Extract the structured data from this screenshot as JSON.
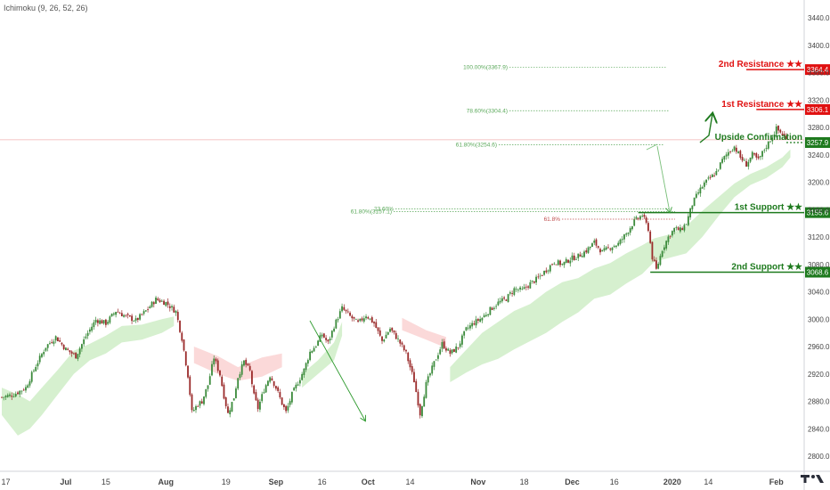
{
  "indicator": "Ichimoku (9, 26, 52, 26)",
  "colors": {
    "bull_candle": "#3a8a3a",
    "bear_candle": "#9a2a2a",
    "cloud_bull": "#d6f0cf",
    "cloud_bear": "#fbd9d9",
    "resistance": "#e01010",
    "support": "#1e7a1e",
    "fib": "#5aa85a",
    "fib_red": "#c05050",
    "arrow": "#2e9a2e",
    "current_price_line": "#f2b0b0"
  },
  "chart_data": {
    "type": "candlestick",
    "x_tick_labels": [
      "17",
      "Jul",
      "15",
      "Aug",
      "19",
      "Sep",
      "16",
      "Oct",
      "14",
      "Nov",
      "18",
      "Dec",
      "16",
      "2020",
      "14",
      "Feb"
    ],
    "x_tick_bold": [
      "Jul",
      "Aug",
      "Sep",
      "Oct",
      "Nov",
      "Dec",
      "2020",
      "Feb"
    ],
    "y_tick_labels": [
      "3440.0",
      "3400.0",
      "3360.0",
      "3320.0",
      "3280.0",
      "3240.0",
      "3200.0",
      "3160.0",
      "3120.0",
      "3080.0",
      "3040.0",
      "3000.0",
      "2960.0",
      "2920.0",
      "2880.0",
      "2840.0",
      "2800.0"
    ],
    "y_ticks": [
      3440,
      3400,
      3360,
      3320,
      3280,
      3240,
      3200,
      3160,
      3120,
      3080,
      3040,
      3000,
      2960,
      2920,
      2880,
      2840,
      2800
    ],
    "ylim": [
      2780,
      3460
    ],
    "close_path": [
      [
        0,
        2886
      ],
      [
        6,
        2890
      ],
      [
        12,
        2900
      ],
      [
        17,
        2932
      ],
      [
        22,
        2960
      ],
      [
        27,
        2974
      ],
      [
        32,
        2956
      ],
      [
        37,
        2946
      ],
      [
        42,
        2975
      ],
      [
        47,
        2999
      ],
      [
        52,
        2994
      ],
      [
        57,
        3012
      ],
      [
        62,
        3004
      ],
      [
        67,
        2998
      ],
      [
        72,
        3012
      ],
      [
        77,
        3029
      ],
      [
        82,
        3024
      ],
      [
        87,
        3011
      ],
      [
        90,
        2972
      ],
      [
        93,
        2918
      ],
      [
        95,
        2864
      ],
      [
        98,
        2876
      ],
      [
        100,
        2880
      ],
      [
        103,
        2904
      ],
      [
        106,
        2944
      ],
      [
        109,
        2919
      ],
      [
        111,
        2888
      ],
      [
        113,
        2862
      ],
      [
        116,
        2886
      ],
      [
        118,
        2916
      ],
      [
        121,
        2938
      ],
      [
        124,
        2924
      ],
      [
        126,
        2888
      ],
      [
        128,
        2870
      ],
      [
        131,
        2897
      ],
      [
        134,
        2918
      ],
      [
        137,
        2900
      ],
      [
        140,
        2877
      ],
      [
        142,
        2864
      ],
      [
        145,
        2890
      ],
      [
        148,
        2908
      ],
      [
        151,
        2926
      ],
      [
        154,
        2952
      ],
      [
        157,
        2962
      ],
      [
        160,
        2978
      ],
      [
        163,
        2965
      ],
      [
        166,
        2990
      ],
      [
        170,
        3016
      ],
      [
        174,
        3004
      ],
      [
        178,
        2994
      ],
      [
        182,
        3006
      ],
      [
        186,
        2994
      ],
      [
        190,
        2968
      ],
      [
        194,
        2986
      ],
      [
        198,
        2970
      ],
      [
        202,
        2950
      ],
      [
        206,
        2910
      ],
      [
        209,
        2862
      ],
      [
        212,
        2905
      ],
      [
        216,
        2936
      ],
      [
        220,
        2964
      ],
      [
        224,
        2950
      ],
      [
        228,
        2960
      ],
      [
        232,
        2985
      ],
      [
        236,
        2995
      ],
      [
        240,
        3002
      ],
      [
        244,
        3014
      ],
      [
        248,
        3024
      ],
      [
        252,
        3030
      ],
      [
        256,
        3044
      ],
      [
        260,
        3042
      ],
      [
        264,
        3052
      ],
      [
        268,
        3060
      ],
      [
        272,
        3072
      ],
      [
        276,
        3084
      ],
      [
        280,
        3080
      ],
      [
        284,
        3088
      ],
      [
        288,
        3092
      ],
      [
        292,
        3100
      ],
      [
        296,
        3112
      ],
      [
        300,
        3098
      ],
      [
        304,
        3105
      ],
      [
        308,
        3110
      ],
      [
        312,
        3125
      ],
      [
        316,
        3143
      ],
      [
        320,
        3152
      ],
      [
        323,
        3132
      ],
      [
        325,
        3090
      ],
      [
        327,
        3072
      ],
      [
        330,
        3102
      ],
      [
        333,
        3120
      ],
      [
        336,
        3132
      ],
      [
        339,
        3130
      ],
      [
        342,
        3140
      ],
      [
        345,
        3168
      ],
      [
        348,
        3185
      ],
      [
        351,
        3198
      ],
      [
        354,
        3206
      ],
      [
        357,
        3215
      ],
      [
        360,
        3232
      ],
      [
        363,
        3244
      ],
      [
        366,
        3252
      ],
      [
        369,
        3236
      ],
      [
        372,
        3226
      ],
      [
        375,
        3240
      ],
      [
        378,
        3232
      ],
      [
        381,
        3248
      ],
      [
        384,
        3262
      ],
      [
        387,
        3278
      ],
      [
        390,
        3270
      ],
      [
        392,
        3262
      ]
    ],
    "ichimoku_cloud_bull": [
      [
        [
          0,
          2900
        ],
        [
          8,
          2890
        ],
        [
          14,
          2880
        ],
        [
          20,
          2900
        ],
        [
          28,
          2926
        ],
        [
          36,
          2954
        ],
        [
          44,
          2964
        ],
        [
          52,
          2976
        ],
        [
          60,
          2990
        ],
        [
          70,
          2992
        ],
        [
          80,
          3000
        ],
        [
          86,
          3004
        ],
        [
          86,
          2990
        ],
        [
          80,
          2980
        ],
        [
          70,
          2970
        ],
        [
          60,
          2966
        ],
        [
          52,
          2950
        ],
        [
          44,
          2940
        ],
        [
          36,
          2920
        ],
        [
          28,
          2890
        ],
        [
          20,
          2860
        ],
        [
          14,
          2840
        ],
        [
          8,
          2830
        ],
        [
          0,
          2860
        ]
      ],
      [
        [
          150,
          2920
        ],
        [
          158,
          2940
        ],
        [
          166,
          2966
        ],
        [
          170,
          2996
        ],
        [
          170,
          2976
        ],
        [
          166,
          2940
        ],
        [
          158,
          2920
        ],
        [
          150,
          2900
        ]
      ],
      [
        [
          224,
          2930
        ],
        [
          232,
          2955
        ],
        [
          240,
          2980
        ],
        [
          248,
          2996
        ],
        [
          256,
          3012
        ],
        [
          264,
          3022
        ],
        [
          272,
          3040
        ],
        [
          280,
          3054
        ],
        [
          288,
          3060
        ],
        [
          296,
          3074
        ],
        [
          304,
          3082
        ],
        [
          312,
          3096
        ],
        [
          320,
          3108
        ],
        [
          326,
          3118
        ],
        [
          334,
          3124
        ],
        [
          342,
          3136
        ],
        [
          350,
          3158
        ],
        [
          358,
          3178
        ],
        [
          366,
          3198
        ],
        [
          374,
          3212
        ],
        [
          382,
          3222
        ],
        [
          390,
          3236
        ],
        [
          394,
          3248
        ],
        [
          394,
          3236
        ],
        [
          390,
          3222
        ],
        [
          382,
          3206
        ],
        [
          374,
          3196
        ],
        [
          366,
          3178
        ],
        [
          358,
          3150
        ],
        [
          350,
          3120
        ],
        [
          342,
          3096
        ],
        [
          334,
          3090
        ],
        [
          326,
          3084
        ],
        [
          320,
          3066
        ],
        [
          312,
          3052
        ],
        [
          304,
          3036
        ],
        [
          296,
          3030
        ],
        [
          288,
          3010
        ],
        [
          280,
          2996
        ],
        [
          272,
          2980
        ],
        [
          264,
          2968
        ],
        [
          256,
          2956
        ],
        [
          248,
          2942
        ],
        [
          240,
          2934
        ],
        [
          232,
          2922
        ],
        [
          224,
          2908
        ]
      ]
    ],
    "ichimoku_cloud_bear": [
      [
        [
          96,
          2960
        ],
        [
          108,
          2946
        ],
        [
          118,
          2930
        ],
        [
          130,
          2944
        ],
        [
          140,
          2950
        ],
        [
          140,
          2930
        ],
        [
          130,
          2916
        ],
        [
          118,
          2910
        ],
        [
          108,
          2920
        ],
        [
          96,
          2936
        ]
      ],
      [
        [
          200,
          3002
        ],
        [
          212,
          2984
        ],
        [
          222,
          2974
        ],
        [
          222,
          2958
        ],
        [
          212,
          2970
        ],
        [
          200,
          2984
        ]
      ]
    ],
    "fib_levels": [
      {
        "label": "100.00%(3367.9)",
        "value": 3367.9
      },
      {
        "label": "78.60%(3304.4)",
        "value": 3304.4
      },
      {
        "label": "61.80%(3254.6)",
        "value": 3254.6
      },
      {
        "label": "23.60%",
        "value": 3161
      },
      {
        "label": "61.80%(3157.1)",
        "value": 3157.1
      },
      {
        "label": "61.8%",
        "value": 3146
      }
    ],
    "levels": [
      {
        "name": "2nd Resistance ★★",
        "value": 3364.4,
        "tag": "3364.4",
        "kind": "resistance",
        "x_from": 372
      },
      {
        "name": "1st Resistance ★★",
        "value": 3306.1,
        "tag": "3306.1",
        "kind": "resistance",
        "x_from": 377
      },
      {
        "name": "Upside Confirmation",
        "value": 3257.9,
        "tag": "3257.9",
        "kind": "support",
        "x_from": 392
      },
      {
        "name": "1st Support ★★",
        "value": 3155.6,
        "tag": "3155.6",
        "kind": "support",
        "x_from": 318
      },
      {
        "name": "2nd Support ★★",
        "value": 3068.6,
        "tag": "3068.6",
        "kind": "support",
        "x_from": 324
      }
    ],
    "current_price": 3262
  }
}
